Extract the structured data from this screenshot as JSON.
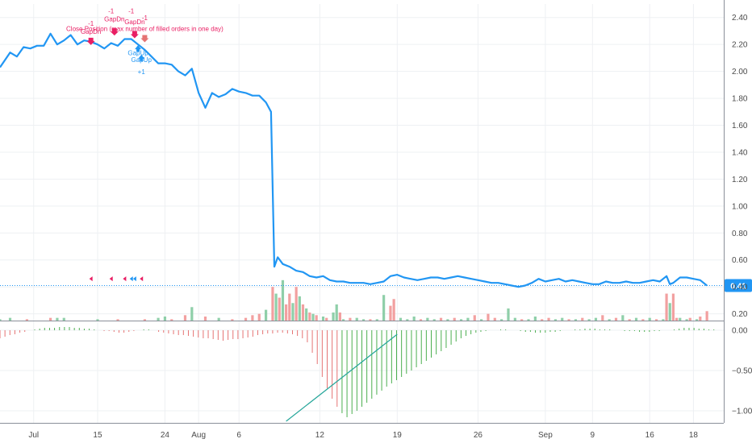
{
  "chart_data": [
    {
      "type": "line",
      "panel": "price",
      "ylim": [
        0.15,
        2.5
      ],
      "y_ticks": [
        "2.40",
        "2.20",
        "2.00",
        "1.80",
        "1.60",
        "1.40",
        "1.20",
        "1.00",
        "0.80",
        "0.60",
        "0.40",
        "0.20"
      ],
      "x_ticks": [
        "Jul",
        "15",
        "24",
        "Aug",
        "6",
        "12",
        "19",
        "26",
        "Sep",
        "9",
        "16",
        "18"
      ],
      "grid": true,
      "last_value_label": "0.41",
      "series": [
        {
          "color": "#2196f3",
          "points": [
            [
              0,
              2.03
            ],
            [
              3,
              2.14
            ],
            [
              5,
              2.11
            ],
            [
              7,
              2.18
            ],
            [
              9,
              2.17
            ],
            [
              11,
              2.19
            ],
            [
              13,
              2.19
            ],
            [
              15,
              2.28
            ],
            [
              17,
              2.2
            ],
            [
              19,
              2.23
            ],
            [
              21,
              2.27
            ],
            [
              23,
              2.2
            ],
            [
              25,
              2.23
            ],
            [
              27,
              2.22
            ],
            [
              29,
              2.2
            ],
            [
              31,
              2.17
            ],
            [
              33,
              2.21
            ],
            [
              35,
              2.19
            ],
            [
              37,
              2.24
            ],
            [
              39,
              2.24
            ],
            [
              41,
              2.2
            ],
            [
              43,
              2.16
            ],
            [
              45,
              2.11
            ],
            [
              47,
              2.06
            ],
            [
              49,
              2.06
            ],
            [
              51,
              2.05
            ],
            [
              53,
              2.0
            ],
            [
              55,
              1.97
            ],
            [
              57,
              2.02
            ],
            [
              59,
              1.84
            ],
            [
              61,
              1.73
            ],
            [
              63,
              1.84
            ],
            [
              65,
              1.81
            ],
            [
              67,
              1.83
            ],
            [
              69,
              1.87
            ],
            [
              71,
              1.85
            ],
            [
              73,
              1.84
            ],
            [
              75,
              1.82
            ],
            [
              77,
              1.82
            ],
            [
              79,
              1.77
            ],
            [
              80.5,
              1.7
            ],
            [
              81.5,
              0.55
            ],
            [
              82.5,
              0.62
            ],
            [
              84,
              0.57
            ],
            [
              86,
              0.55
            ],
            [
              88,
              0.52
            ],
            [
              90,
              0.51
            ],
            [
              92,
              0.48
            ],
            [
              94,
              0.47
            ],
            [
              96,
              0.48
            ],
            [
              98,
              0.45
            ],
            [
              100,
              0.44
            ],
            [
              102,
              0.44
            ],
            [
              104,
              0.43
            ],
            [
              106,
              0.43
            ],
            [
              108,
              0.43
            ],
            [
              110,
              0.42
            ],
            [
              112,
              0.43
            ],
            [
              114,
              0.44
            ],
            [
              116,
              0.48
            ],
            [
              118,
              0.49
            ],
            [
              120,
              0.47
            ],
            [
              122,
              0.46
            ],
            [
              124,
              0.45
            ],
            [
              126,
              0.46
            ],
            [
              128,
              0.47
            ],
            [
              130,
              0.47
            ],
            [
              132,
              0.46
            ],
            [
              134,
              0.47
            ],
            [
              136,
              0.48
            ],
            [
              138,
              0.47
            ],
            [
              140,
              0.46
            ],
            [
              142,
              0.45
            ],
            [
              144,
              0.44
            ],
            [
              146,
              0.43
            ],
            [
              148,
              0.43
            ],
            [
              150,
              0.42
            ],
            [
              152,
              0.41
            ],
            [
              154,
              0.4
            ],
            [
              156,
              0.41
            ],
            [
              158,
              0.43
            ],
            [
              160,
              0.46
            ],
            [
              162,
              0.44
            ],
            [
              164,
              0.45
            ],
            [
              166,
              0.46
            ],
            [
              168,
              0.44
            ],
            [
              170,
              0.45
            ],
            [
              172,
              0.44
            ],
            [
              174,
              0.43
            ],
            [
              176,
              0.42
            ],
            [
              178,
              0.42
            ],
            [
              180,
              0.44
            ],
            [
              182,
              0.43
            ],
            [
              184,
              0.43
            ],
            [
              186,
              0.44
            ],
            [
              188,
              0.43
            ],
            [
              190,
              0.43
            ],
            [
              192,
              0.44
            ],
            [
              194,
              0.45
            ],
            [
              196,
              0.44
            ],
            [
              198,
              0.48
            ],
            [
              199,
              0.42
            ],
            [
              200,
              0.43
            ],
            [
              202,
              0.47
            ],
            [
              204,
              0.47
            ],
            [
              206,
              0.46
            ],
            [
              208,
              0.45
            ],
            [
              210,
              0.41
            ]
          ]
        }
      ],
      "volume_bars": [
        [
          0,
          0.01,
          "g"
        ],
        [
          3,
          0.02,
          "g"
        ],
        [
          8,
          0.01,
          "r"
        ],
        [
          15,
          0.02,
          "r"
        ],
        [
          17,
          0.02,
          "g"
        ],
        [
          19,
          0.02,
          "g"
        ],
        [
          29,
          0.01,
          "g"
        ],
        [
          35,
          0.01,
          "r"
        ],
        [
          43,
          0.01,
          "r"
        ],
        [
          47,
          0.02,
          "g"
        ],
        [
          49,
          0.03,
          "g"
        ],
        [
          51,
          0.01,
          "r"
        ],
        [
          55,
          0.04,
          "r"
        ],
        [
          57,
          0.1,
          "g"
        ],
        [
          61,
          0.03,
          "r"
        ],
        [
          65,
          0.02,
          "g"
        ],
        [
          69,
          0.01,
          "r"
        ],
        [
          73,
          0.02,
          "r"
        ],
        [
          75,
          0.04,
          "r"
        ],
        [
          77,
          0.05,
          "r"
        ],
        [
          79,
          0.08,
          "g"
        ],
        [
          81,
          0.25,
          "r"
        ],
        [
          82,
          0.2,
          "g"
        ],
        [
          83,
          0.17,
          "r"
        ],
        [
          84,
          0.3,
          "g"
        ],
        [
          85,
          0.12,
          "r"
        ],
        [
          86,
          0.2,
          "r"
        ],
        [
          87,
          0.13,
          "g"
        ],
        [
          88,
          0.25,
          "r"
        ],
        [
          89,
          0.18,
          "g"
        ],
        [
          90,
          0.12,
          "r"
        ],
        [
          91,
          0.09,
          "g"
        ],
        [
          92,
          0.06,
          "r"
        ],
        [
          93,
          0.05,
          "g"
        ],
        [
          94,
          0.04,
          "r"
        ],
        [
          96,
          0.03,
          "g"
        ],
        [
          97,
          0.02,
          "r"
        ],
        [
          99,
          0.06,
          "g"
        ],
        [
          100,
          0.12,
          "g"
        ],
        [
          101,
          0.06,
          "r"
        ],
        [
          102,
          0.01,
          "g"
        ],
        [
          104,
          0.02,
          "r"
        ],
        [
          106,
          0.02,
          "g"
        ],
        [
          108,
          0.01,
          "g"
        ],
        [
          110,
          0.01,
          "r"
        ],
        [
          112,
          0.01,
          "g"
        ],
        [
          114,
          0.19,
          "g"
        ],
        [
          116,
          0.11,
          "r"
        ],
        [
          117,
          0.16,
          "r"
        ],
        [
          119,
          0.02,
          "g"
        ],
        [
          121,
          0.01,
          "g"
        ],
        [
          123,
          0.03,
          "g"
        ],
        [
          125,
          0.01,
          "r"
        ],
        [
          127,
          0.02,
          "g"
        ],
        [
          129,
          0.01,
          "g"
        ],
        [
          131,
          0.02,
          "r"
        ],
        [
          133,
          0.01,
          "g"
        ],
        [
          135,
          0.02,
          "r"
        ],
        [
          137,
          0.01,
          "g"
        ],
        [
          139,
          0.02,
          "g"
        ],
        [
          141,
          0.04,
          "r"
        ],
        [
          143,
          0.01,
          "g"
        ],
        [
          145,
          0.05,
          "r"
        ],
        [
          147,
          0.02,
          "r"
        ],
        [
          149,
          0.01,
          "g"
        ],
        [
          151,
          0.09,
          "g"
        ],
        [
          153,
          0.02,
          "g"
        ],
        [
          155,
          0.01,
          "r"
        ],
        [
          157,
          0.01,
          "g"
        ],
        [
          159,
          0.03,
          "g"
        ],
        [
          161,
          0.01,
          "r"
        ],
        [
          163,
          0.02,
          "r"
        ],
        [
          165,
          0.01,
          "g"
        ],
        [
          167,
          0.02,
          "g"
        ],
        [
          169,
          0.01,
          "r"
        ],
        [
          171,
          0.01,
          "g"
        ],
        [
          173,
          0.02,
          "r"
        ],
        [
          175,
          0.01,
          "g"
        ],
        [
          177,
          0.02,
          "g"
        ],
        [
          179,
          0.04,
          "r"
        ],
        [
          181,
          0.01,
          "g"
        ],
        [
          183,
          0.02,
          "r"
        ],
        [
          185,
          0.04,
          "g"
        ],
        [
          187,
          0.01,
          "r"
        ],
        [
          189,
          0.02,
          "g"
        ],
        [
          191,
          0.01,
          "r"
        ],
        [
          193,
          0.02,
          "g"
        ],
        [
          195,
          0.01,
          "r"
        ],
        [
          197,
          0.01,
          "g"
        ],
        [
          198,
          0.2,
          "r"
        ],
        [
          199,
          0.13,
          "g"
        ],
        [
          200,
          0.2,
          "r"
        ],
        [
          201,
          0.02,
          "r"
        ],
        [
          202,
          0.02,
          "g"
        ],
        [
          204,
          0.01,
          "g"
        ],
        [
          205,
          0.02,
          "r"
        ],
        [
          207,
          0.01,
          "g"
        ],
        [
          208,
          0.03,
          "r"
        ],
        [
          210,
          0.07,
          "r"
        ]
      ],
      "trade_labels": [
        {
          "text": "Close Position (max number of filled orders in one day)",
          "x": 43,
          "y": 2.3,
          "color": "#e91e63"
        },
        {
          "text": "-1",
          "x": 27,
          "y": 2.34,
          "color": "#e91e63"
        },
        {
          "text": "GapDn",
          "x": 27,
          "y": 2.28,
          "color": "#e91e63"
        },
        {
          "text": "-1",
          "x": 33,
          "y": 2.43,
          "color": "#e91e63"
        },
        {
          "text": "GapDn",
          "x": 34,
          "y": 2.37,
          "color": "#e91e63"
        },
        {
          "text": "-1",
          "x": 39,
          "y": 2.43,
          "color": "#e91e63"
        },
        {
          "text": "GapDn",
          "x": 40,
          "y": 2.35,
          "color": "#e91e63"
        },
        {
          "text": "-1",
          "x": 43,
          "y": 2.38,
          "color": "#e91e63"
        },
        {
          "text": "GapUp",
          "x": 41,
          "y": 2.12,
          "color": "#2196f3"
        },
        {
          "text": "GapUp",
          "x": 42,
          "y": 2.07,
          "color": "#2196f3"
        },
        {
          "text": "+1",
          "x": 42,
          "y": 1.98,
          "color": "#2196f3"
        }
      ]
    },
    {
      "type": "bar",
      "panel": "oscillator",
      "ylim": [
        -1.15,
        0.1
      ],
      "y_ticks": [
        "0.00",
        "−0.50",
        "−1.00"
      ],
      "values": [
        -0.1,
        -0.08,
        -0.06,
        -0.05,
        -0.03,
        -0.02,
        0.0,
        0.01,
        0.02,
        0.03,
        0.03,
        0.03,
        0.04,
        0.04,
        0.04,
        0.03,
        0.03,
        0.02,
        0.02,
        0.01,
        0.0,
        -0.01,
        -0.01,
        -0.02,
        -0.03,
        -0.03,
        -0.02,
        -0.01,
        0.0,
        0.01,
        0.01,
        0.0,
        -0.02,
        -0.03,
        -0.04,
        -0.05,
        -0.06,
        -0.06,
        -0.07,
        -0.08,
        -0.09,
        -0.1,
        -0.1,
        -0.11,
        -0.12,
        -0.13,
        -0.12,
        -0.11,
        -0.11,
        -0.1,
        -0.09,
        -0.08,
        -0.06,
        -0.05,
        -0.04,
        -0.04,
        -0.03,
        -0.03,
        -0.04,
        -0.05,
        -0.07,
        -0.1,
        -0.15,
        -0.28,
        -0.42,
        -0.58,
        -0.72,
        -0.85,
        -0.95,
        -1.03,
        -1.08,
        -1.04,
        -1.0,
        -0.95,
        -0.9,
        -0.85,
        -0.8,
        -0.75,
        -0.7,
        -0.66,
        -0.62,
        -0.58,
        -0.54,
        -0.5,
        -0.46,
        -0.42,
        -0.38,
        -0.34,
        -0.3,
        -0.26,
        -0.22,
        -0.18,
        -0.14,
        -0.1,
        -0.07,
        -0.05,
        -0.03,
        -0.02,
        -0.01,
        0.0,
        0.0,
        0.01,
        0.01,
        0.0,
        0.0,
        -0.01,
        -0.02,
        -0.02,
        -0.03,
        -0.03,
        -0.03,
        -0.02,
        -0.02,
        -0.01,
        0.0,
        0.0,
        0.01,
        0.01,
        0.02,
        0.02,
        0.02,
        0.01,
        0.01,
        0.01,
        0.0,
        0.0,
        -0.01,
        -0.01,
        -0.01,
        -0.02,
        -0.02,
        -0.02,
        -0.01,
        -0.01,
        0.0,
        0.0,
        0.01,
        0.02,
        0.03,
        0.03,
        0.03,
        0.02,
        0.02,
        0.01,
        0.01,
        0.0
      ],
      "trendline": [
        [
          85,
          -1.13
        ],
        [
          118,
          -0.05
        ]
      ],
      "colors": {
        "positive": "#4caf50",
        "negative": "#e57373"
      }
    }
  ],
  "colors": {
    "line": "#2196f3",
    "up": "#4caf50",
    "down": "#ef5350",
    "grid": "#eef0f3",
    "label_bg": "#2196f3"
  }
}
